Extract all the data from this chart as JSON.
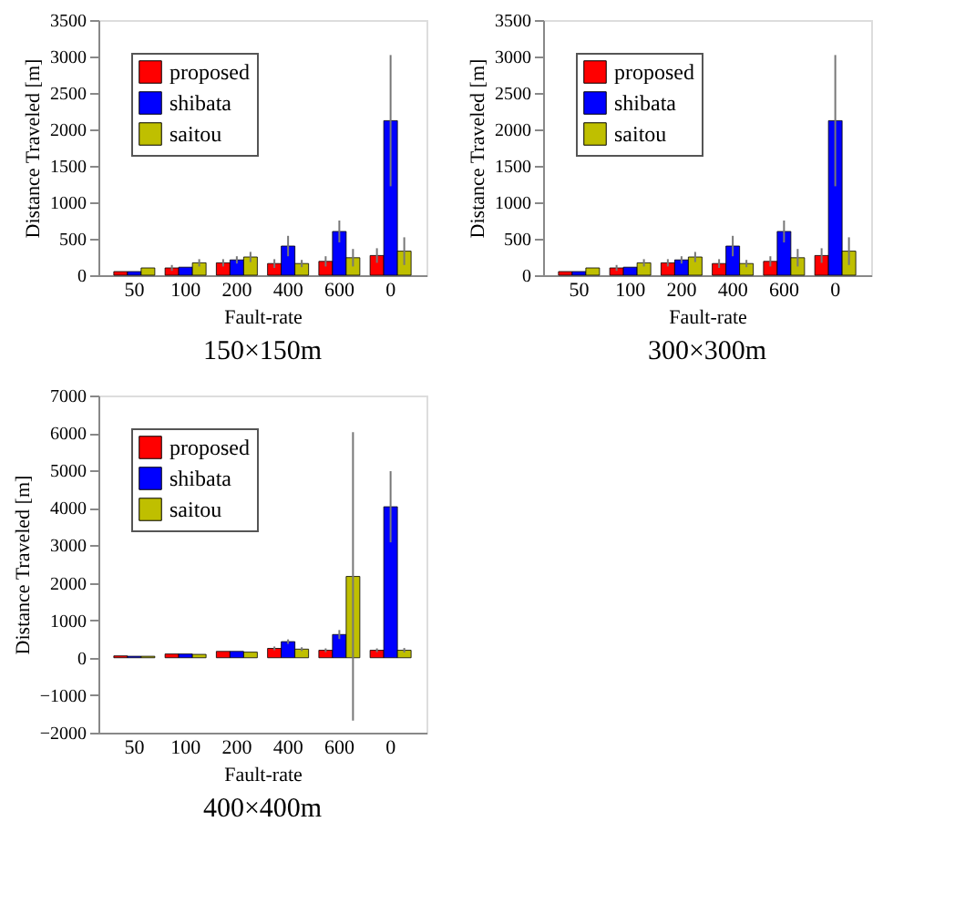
{
  "chart_data": [
    {
      "type": "bar",
      "title": "150×150m",
      "xlabel": "Fault-rate",
      "ylabel": "Distance Traveled [m]",
      "categories": [
        "50",
        "100",
        "200",
        "400",
        "600",
        "0"
      ],
      "ylim": [
        0,
        3500
      ],
      "yticks": [
        0,
        500,
        1000,
        1500,
        2000,
        2500,
        3000,
        3500
      ],
      "legend": "top left",
      "grid": false,
      "series": [
        {
          "name": "proposed",
          "color": "#ff0000",
          "values": [
            50,
            100,
            170,
            160,
            190,
            270
          ],
          "errors": [
            null,
            40,
            50,
            60,
            70,
            100
          ]
        },
        {
          "name": "shibata",
          "color": "#0000ff",
          "values": [
            50,
            110,
            210,
            400,
            600,
            2120
          ],
          "errors": [
            null,
            null,
            50,
            140,
            150,
            900
          ]
        },
        {
          "name": "saitou",
          "color": "#bfbf00",
          "values": [
            100,
            170,
            250,
            160,
            240,
            330
          ],
          "errors": [
            null,
            50,
            70,
            50,
            120,
            190
          ]
        }
      ]
    },
    {
      "type": "bar",
      "title": "300×300m",
      "xlabel": "Fault-rate",
      "ylabel": "Distance Traveled [m]",
      "categories": [
        "50",
        "100",
        "200",
        "400",
        "600",
        "0"
      ],
      "ylim": [
        0,
        3500
      ],
      "yticks": [
        0,
        500,
        1000,
        1500,
        2000,
        2500,
        3000,
        3500
      ],
      "legend": "top left",
      "grid": false,
      "series": [
        {
          "name": "proposed",
          "color": "#ff0000",
          "values": [
            50,
            100,
            170,
            160,
            190,
            270
          ],
          "errors": [
            null,
            40,
            50,
            60,
            70,
            100
          ]
        },
        {
          "name": "shibata",
          "color": "#0000ff",
          "values": [
            50,
            110,
            210,
            400,
            600,
            2120
          ],
          "errors": [
            null,
            null,
            50,
            140,
            150,
            900
          ]
        },
        {
          "name": "saitou",
          "color": "#bfbf00",
          "values": [
            100,
            170,
            250,
            160,
            240,
            330
          ],
          "errors": [
            null,
            50,
            70,
            50,
            120,
            190
          ]
        }
      ]
    },
    {
      "type": "bar",
      "title": "400×400m",
      "xlabel": "Fault-rate",
      "ylabel": "Distance Traveled [m]",
      "categories": [
        "50",
        "100",
        "200",
        "400",
        "600",
        "0"
      ],
      "ylim": [
        -2000,
        7000
      ],
      "yticks": [
        -2000,
        -1000,
        0,
        1000,
        2000,
        3000,
        4000,
        5000,
        6000,
        7000
      ],
      "legend": "top left",
      "grid": false,
      "series": [
        {
          "name": "proposed",
          "color": "#ff0000",
          "values": [
            50,
            100,
            170,
            250,
            200,
            200
          ],
          "errors": [
            null,
            null,
            null,
            50,
            50,
            50
          ]
        },
        {
          "name": "shibata",
          "color": "#0000ff",
          "values": [
            40,
            100,
            170,
            430,
            620,
            4030
          ],
          "errors": [
            null,
            null,
            null,
            60,
            120,
            950
          ]
        },
        {
          "name": "saitou",
          "color": "#bfbf00",
          "values": [
            40,
            90,
            150,
            230,
            2170,
            200
          ],
          "errors": [
            null,
            null,
            null,
            50,
            3850,
            60
          ]
        }
      ]
    }
  ]
}
